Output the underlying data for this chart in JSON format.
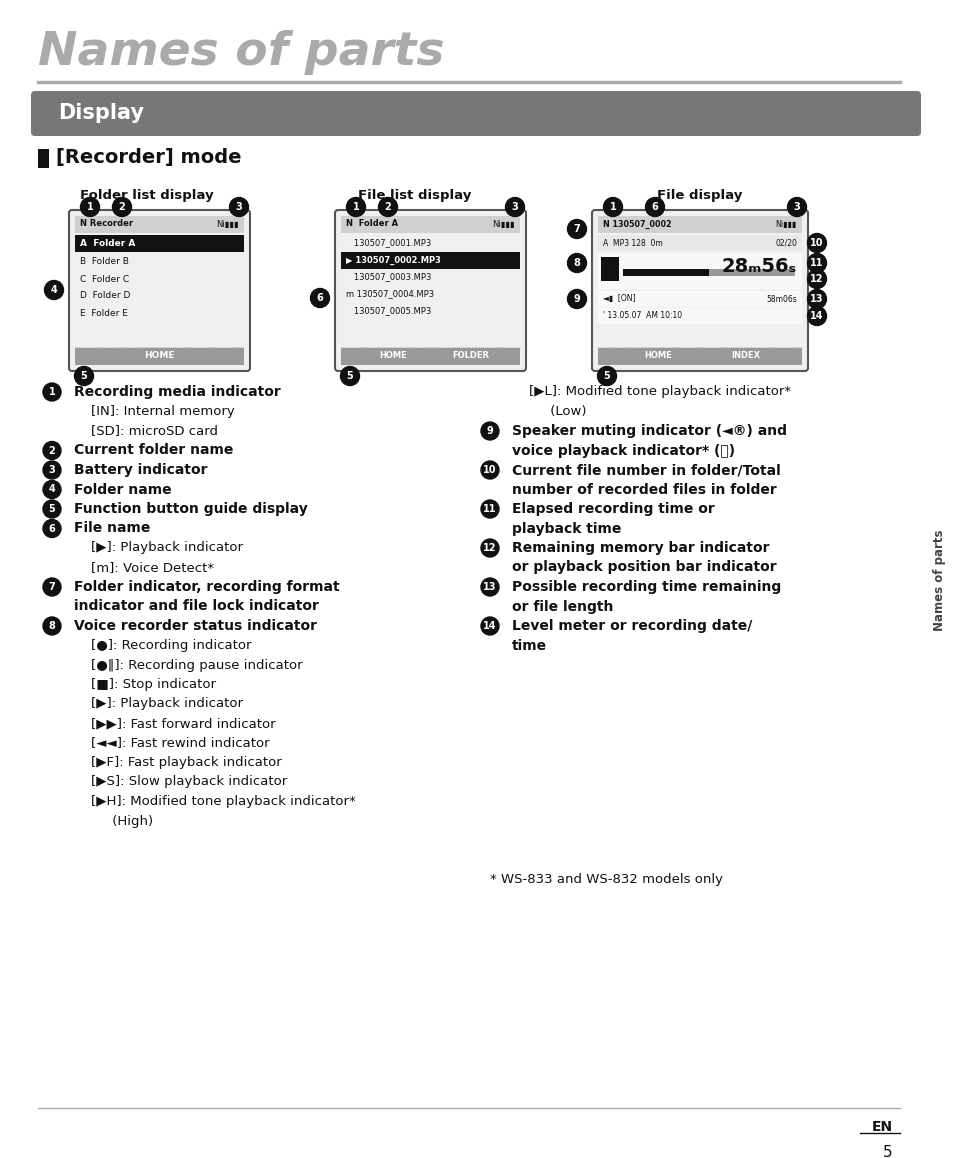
{
  "title": "Names of parts",
  "title_color": "#aaaaaa",
  "title_fontsize": 34,
  "section_bg": "#777777",
  "section_text": "Display",
  "section_text_color": "#ffffff",
  "section_fontsize": 15,
  "mode_text": "[Recorder] mode",
  "mode_fontsize": 14,
  "background": "#ffffff",
  "display_labels": [
    "Folder list display",
    "File list display",
    "File display"
  ],
  "sidebar_text": "Names of parts",
  "sidebar_color": "#444444",
  "body_text_color": "#111111",
  "bullet_bg": "#111111",
  "bullet_text_color": "#ffffff",
  "footnote": "* WS-833 and WS-832 models only",
  "page_num": "5",
  "en_text": "EN",
  "ann_left": [
    [
      "1",
      "Recording media indicator",
      "",
      true
    ],
    [
      "",
      "",
      "    [IN]: Internal memory",
      false
    ],
    [
      "",
      "",
      "    [SD]: microSD card",
      false
    ],
    [
      "2",
      "Current folder name",
      "",
      true
    ],
    [
      "3",
      "Battery indicator",
      "",
      true
    ],
    [
      "4",
      "Folder name",
      "",
      true
    ],
    [
      "5",
      "Function button guide display",
      "",
      true
    ],
    [
      "6",
      "File name",
      "",
      true
    ],
    [
      "",
      "",
      "    [▶]: Playback indicator",
      false
    ],
    [
      "",
      "",
      "    [m]: Voice Detect*",
      false
    ],
    [
      "7",
      "Folder indicator, recording format",
      "",
      true
    ],
    [
      "",
      "indicator and file lock indicator",
      "",
      true
    ],
    [
      "8",
      "Voice recorder status indicator",
      "",
      true
    ],
    [
      "",
      "",
      "    [●]: Recording indicator",
      false
    ],
    [
      "",
      "",
      "    [●‖]: Recording pause indicator",
      false
    ],
    [
      "",
      "",
      "    [■]: Stop indicator",
      false
    ],
    [
      "",
      "",
      "    [▶]: Playback indicator",
      false
    ],
    [
      "",
      "",
      "    [▶▶]: Fast forward indicator",
      false
    ],
    [
      "",
      "",
      "    [◄◄]: Fast rewind indicator",
      false
    ],
    [
      "",
      "",
      "    [▶F]: Fast playback indicator",
      false
    ],
    [
      "",
      "",
      "    [▶S]: Slow playback indicator",
      false
    ],
    [
      "",
      "",
      "    [▶H]: Modified tone playback indicator*",
      false
    ],
    [
      "",
      "",
      "         (High)",
      false
    ]
  ],
  "ann_right": [
    [
      "",
      "",
      "    [▶L]: Modified tone playback indicator*",
      false
    ],
    [
      "",
      "",
      "         (Low)",
      false
    ],
    [
      "9",
      "Speaker muting indicator (◄®) and",
      "",
      true
    ],
    [
      "",
      "voice playback indicator* (⒨)",
      "",
      true
    ],
    [
      "10",
      "Current file number in folder/Total",
      "",
      true
    ],
    [
      "",
      "number of recorded files in folder",
      "",
      true
    ],
    [
      "11",
      "Elapsed recording time or",
      "",
      true
    ],
    [
      "",
      "playback time",
      "",
      true
    ],
    [
      "12",
      "Remaining memory bar indicator",
      "",
      true
    ],
    [
      "",
      "or playback position bar indicator",
      "",
      true
    ],
    [
      "13",
      "Possible recording time remaining",
      "",
      true
    ],
    [
      "",
      "or file length",
      "",
      true
    ],
    [
      "14",
      "Level meter or recording date/",
      "",
      true
    ],
    [
      "",
      "time",
      "",
      true
    ]
  ]
}
